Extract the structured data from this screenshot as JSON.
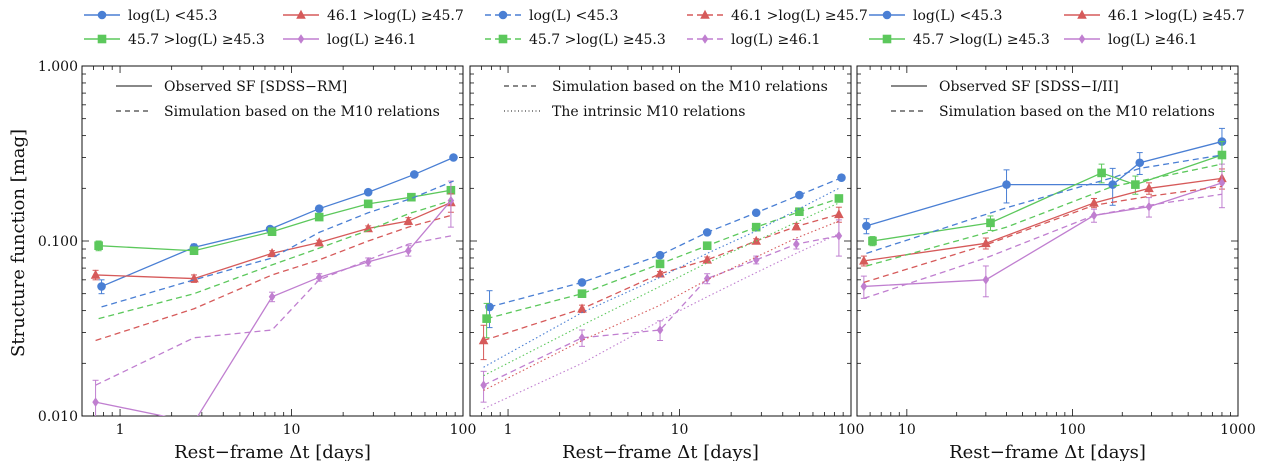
{
  "figure": {
    "ylabel": "Structure function [mag]",
    "legend_groups": [
      {
        "panel": 1,
        "items": [
          {
            "label": "log(L) <45.3",
            "series": "blue",
            "linestyle": "solid"
          },
          {
            "label": "46.1 >log(L) ≥45.7",
            "series": "red",
            "linestyle": "solid"
          },
          {
            "label": "45.7 >log(L) ≥45.3",
            "series": "green",
            "linestyle": "solid"
          },
          {
            "label": "log(L) ≥46.1",
            "series": "purple",
            "linestyle": "solid"
          }
        ]
      },
      {
        "panel": 2,
        "items": [
          {
            "label": "log(L) <45.3",
            "series": "blue",
            "linestyle": "dashed"
          },
          {
            "label": "46.1 >log(L) ≥45.7",
            "series": "red",
            "linestyle": "dashed"
          },
          {
            "label": "45.7 >log(L) ≥45.3",
            "series": "green",
            "linestyle": "dashed"
          },
          {
            "label": "log(L) ≥46.1",
            "series": "purple",
            "linestyle": "dashed"
          }
        ]
      },
      {
        "panel": 3,
        "items": [
          {
            "label": "log(L) <45.3",
            "series": "blue",
            "linestyle": "solid"
          },
          {
            "label": "46.1 >log(L) ≥45.7",
            "series": "red",
            "linestyle": "solid"
          },
          {
            "label": "45.7 >log(L) ≥45.3",
            "series": "green",
            "linestyle": "solid"
          },
          {
            "label": "log(L) ≥46.1",
            "series": "purple",
            "linestyle": "solid"
          }
        ]
      }
    ]
  },
  "colors": {
    "blue": "#4a7fd4",
    "green": "#5cc85c",
    "red": "#d65a5a",
    "purple": "#c07fd0",
    "axis": "#111111"
  },
  "markers": {
    "blue": "circle",
    "green": "square",
    "red": "triangle",
    "purple": "diamond"
  },
  "chart_data": [
    {
      "type": "line",
      "xlabel": "Rest−frame Δt [days]",
      "ylabel": "Structure function [mag]",
      "xscale": "log",
      "yscale": "log",
      "xlim": [
        0.6,
        100
      ],
      "ylim": [
        0.01,
        1.0
      ],
      "xticks": [
        1,
        10,
        100
      ],
      "xtick_labels": [
        "1",
        "10",
        "100"
      ],
      "yticks": [
        0.01,
        0.1,
        1.0
      ],
      "ytick_labels": [
        "0.010",
        "0.100",
        "1.000"
      ],
      "grid": false,
      "inset_legend": {
        "placement": "top-left",
        "items": [
          {
            "label": "Observed SF [SDSS−RM]",
            "linestyle": "solid"
          },
          {
            "label": "Simulation based on the M10 relations",
            "linestyle": "dashed"
          }
        ]
      },
      "series": [
        {
          "color": "blue",
          "linestyle": "solid",
          "marker": "circle",
          "x": [
            0.78,
            2.7,
            7.5,
            14.5,
            28,
            52,
            88
          ],
          "y": [
            0.055,
            0.092,
            0.117,
            0.153,
            0.19,
            0.24,
            0.3
          ],
          "yerr": [
            0.005,
            0.004,
            0.004,
            0.004,
            0.005,
            0.006,
            0.008
          ]
        },
        {
          "color": "green",
          "linestyle": "solid",
          "marker": "square",
          "x": [
            0.75,
            2.7,
            7.7,
            14.5,
            28,
            50,
            85
          ],
          "y": [
            0.094,
            0.088,
            0.113,
            0.137,
            0.163,
            0.178,
            0.195
          ],
          "yerr": [
            0.006,
            0.003,
            0.004,
            0.003,
            0.004,
            0.005,
            0.007
          ]
        },
        {
          "color": "red",
          "linestyle": "solid",
          "marker": "triangle",
          "x": [
            0.72,
            2.7,
            7.7,
            14.5,
            28,
            48,
            85
          ],
          "y": [
            0.064,
            0.061,
            0.085,
            0.098,
            0.118,
            0.13,
            0.166
          ],
          "yerr": [
            0.004,
            0.003,
            0.003,
            0.003,
            0.004,
            0.006,
            0.02
          ]
        },
        {
          "color": "purple",
          "linestyle": "solid",
          "marker": "diamond",
          "x": [
            0.72,
            2.7,
            7.7,
            14.5,
            28,
            48,
            85
          ],
          "y": [
            0.012,
            0.0092,
            0.048,
            0.062,
            0.076,
            0.088,
            0.17
          ],
          "yerr": [
            0.004,
            0.0,
            0.003,
            0.003,
            0.004,
            0.006,
            0.05
          ]
        },
        {
          "color": "blue",
          "linestyle": "dashed",
          "marker": "none",
          "x": [
            0.78,
            2.7,
            7.7,
            14.5,
            28,
            50,
            88
          ],
          "y": [
            0.042,
            0.06,
            0.08,
            0.112,
            0.145,
            0.175,
            0.22
          ]
        },
        {
          "color": "green",
          "linestyle": "dashed",
          "marker": "none",
          "x": [
            0.75,
            2.7,
            7.7,
            14.5,
            28,
            48,
            85
          ],
          "y": [
            0.036,
            0.05,
            0.073,
            0.091,
            0.115,
            0.143,
            0.17
          ]
        },
        {
          "color": "red",
          "linestyle": "dashed",
          "marker": "none",
          "x": [
            0.72,
            2.7,
            7.7,
            14.5,
            28,
            48,
            85
          ],
          "y": [
            0.027,
            0.041,
            0.064,
            0.078,
            0.1,
            0.12,
            0.14
          ]
        },
        {
          "color": "purple",
          "linestyle": "dashed",
          "marker": "none",
          "x": [
            0.72,
            2.7,
            7.7,
            14.5,
            28,
            48,
            85
          ],
          "y": [
            0.015,
            0.028,
            0.031,
            0.06,
            0.078,
            0.096,
            0.107
          ]
        }
      ]
    },
    {
      "type": "line",
      "xlabel": "Rest−frame Δt [days]",
      "xscale": "log",
      "yscale": "log",
      "xlim": [
        0.6,
        100
      ],
      "ylim": [
        0.01,
        1.0
      ],
      "xticks": [
        1,
        10,
        100
      ],
      "xtick_labels": [
        "1",
        "10",
        "100"
      ],
      "grid": false,
      "inset_legend": {
        "placement": "top-left",
        "items": [
          {
            "label": "Simulation based on the M10 relations",
            "linestyle": "dashed"
          },
          {
            "label": "The intrinsic M10 relations",
            "linestyle": "dotted"
          }
        ]
      },
      "series": [
        {
          "color": "blue",
          "linestyle": "dashed",
          "marker": "circle",
          "x": [
            0.78,
            2.7,
            7.7,
            14.5,
            28,
            50,
            88
          ],
          "y": [
            0.042,
            0.058,
            0.083,
            0.112,
            0.145,
            0.183,
            0.23
          ],
          "yerr": [
            0.01,
            0.002,
            0.002,
            0.003,
            0.003,
            0.004,
            0.006
          ]
        },
        {
          "color": "green",
          "linestyle": "dashed",
          "marker": "square",
          "x": [
            0.75,
            2.7,
            7.7,
            14.5,
            28,
            50,
            85
          ],
          "y": [
            0.036,
            0.05,
            0.074,
            0.094,
            0.12,
            0.147,
            0.175
          ],
          "yerr": [
            0.008,
            0.002,
            0.002,
            0.003,
            0.003,
            0.004,
            0.008
          ]
        },
        {
          "color": "red",
          "linestyle": "dashed",
          "marker": "triangle",
          "x": [
            0.72,
            2.7,
            7.7,
            14.5,
            28,
            48,
            85
          ],
          "y": [
            0.027,
            0.041,
            0.065,
            0.078,
            0.1,
            0.121,
            0.142
          ],
          "yerr": [
            0.006,
            0.002,
            0.002,
            0.003,
            0.003,
            0.005,
            0.014
          ]
        },
        {
          "color": "purple",
          "linestyle": "dashed",
          "marker": "diamond",
          "x": [
            0.72,
            2.7,
            7.7,
            14.5,
            28,
            48,
            85
          ],
          "y": [
            0.015,
            0.028,
            0.031,
            0.061,
            0.078,
            0.096,
            0.107
          ],
          "yerr": [
            0.003,
            0.003,
            0.004,
            0.004,
            0.004,
            0.006,
            0.025
          ]
        },
        {
          "color": "blue",
          "linestyle": "dotted",
          "marker": "none",
          "x": [
            0.72,
            2.7,
            7.7,
            14.5,
            28,
            48,
            85
          ],
          "y": [
            0.019,
            0.039,
            0.062,
            0.085,
            0.114,
            0.15,
            0.2
          ]
        },
        {
          "color": "green",
          "linestyle": "dotted",
          "marker": "none",
          "x": [
            0.72,
            2.7,
            7.7,
            14.5,
            28,
            48,
            85
          ],
          "y": [
            0.017,
            0.033,
            0.055,
            0.075,
            0.1,
            0.128,
            0.165
          ]
        },
        {
          "color": "red",
          "linestyle": "dotted",
          "marker": "none",
          "x": [
            0.72,
            2.7,
            7.7,
            14.5,
            28,
            48,
            85
          ],
          "y": [
            0.014,
            0.027,
            0.043,
            0.06,
            0.081,
            0.104,
            0.13
          ]
        },
        {
          "color": "purple",
          "linestyle": "dotted",
          "marker": "none",
          "x": [
            0.72,
            2.7,
            7.7,
            14.5,
            28,
            48,
            85
          ],
          "y": [
            0.011,
            0.02,
            0.035,
            0.048,
            0.066,
            0.085,
            0.11
          ]
        }
      ]
    },
    {
      "type": "line",
      "xlabel": "Rest−frame Δt [days]",
      "xscale": "log",
      "yscale": "log",
      "xlim": [
        5,
        1000
      ],
      "ylim": [
        0.01,
        1.0
      ],
      "xticks": [
        10,
        100,
        1000
      ],
      "xtick_labels": [
        "10",
        "100",
        "1000"
      ],
      "grid": false,
      "inset_legend": {
        "placement": "top-left",
        "items": [
          {
            "label": "Observed SF [SDSS−I/II]",
            "linestyle": "solid"
          },
          {
            "label": "Simulation based on the M10 relations",
            "linestyle": "dashed"
          }
        ]
      },
      "series": [
        {
          "color": "blue",
          "linestyle": "solid",
          "marker": "circle",
          "x": [
            5.7,
            40,
            175,
            255,
            800
          ],
          "y": [
            0.122,
            0.21,
            0.21,
            0.28,
            0.37
          ],
          "yerr": [
            0.012,
            0.045,
            0.05,
            0.04,
            0.07
          ]
        },
        {
          "color": "green",
          "linestyle": "solid",
          "marker": "square",
          "x": [
            6.2,
            32,
            150,
            240,
            800
          ],
          "y": [
            0.1,
            0.127,
            0.245,
            0.21,
            0.31
          ],
          "yerr": [
            0.006,
            0.012,
            0.03,
            0.025,
            0.06
          ]
        },
        {
          "color": "red",
          "linestyle": "solid",
          "marker": "triangle",
          "x": [
            5.5,
            30,
            135,
            290,
            800
          ],
          "y": [
            0.077,
            0.097,
            0.165,
            0.2,
            0.228
          ],
          "yerr": [
            0.005,
            0.007,
            0.01,
            0.015,
            0.03
          ]
        },
        {
          "color": "purple",
          "linestyle": "solid",
          "marker": "diamond",
          "x": [
            5.5,
            30,
            135,
            290,
            800
          ],
          "y": [
            0.055,
            0.06,
            0.14,
            0.157,
            0.215
          ],
          "yerr": [
            0.008,
            0.012,
            0.012,
            0.02,
            0.06
          ]
        },
        {
          "color": "blue",
          "linestyle": "dashed",
          "marker": "none",
          "x": [
            5.7,
            40,
            175,
            255,
            800
          ],
          "y": [
            0.085,
            0.155,
            0.23,
            0.26,
            0.31
          ]
        },
        {
          "color": "green",
          "linestyle": "dashed",
          "marker": "none",
          "x": [
            5.7,
            40,
            175,
            255,
            800
          ],
          "y": [
            0.072,
            0.12,
            0.205,
            0.22,
            0.275
          ]
        },
        {
          "color": "red",
          "linestyle": "dashed",
          "marker": "none",
          "x": [
            5.5,
            30,
            135,
            290,
            800
          ],
          "y": [
            0.058,
            0.095,
            0.16,
            0.18,
            0.205
          ]
        },
        {
          "color": "purple",
          "linestyle": "dashed",
          "marker": "none",
          "x": [
            5.5,
            30,
            135,
            290,
            800
          ],
          "y": [
            0.047,
            0.08,
            0.14,
            0.16,
            0.185
          ]
        }
      ]
    }
  ]
}
